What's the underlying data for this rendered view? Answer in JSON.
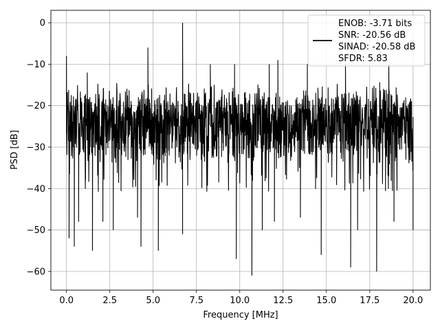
{
  "chart_data": {
    "type": "line",
    "xlabel": "Frequency [MHz]",
    "ylabel": "PSD [dB]",
    "xlim": [
      -0.9,
      21.0
    ],
    "ylim": [
      -64.5,
      3.0
    ],
    "grid": true,
    "x_ticks": [
      0.0,
      2.5,
      5.0,
      7.5,
      10.0,
      12.5,
      15.0,
      17.5,
      20.0
    ],
    "x_tick_labels": [
      "0.0",
      "2.5",
      "5.0",
      "7.5",
      "10.0",
      "12.5",
      "15.0",
      "17.5",
      "20.0"
    ],
    "y_ticks": [
      0,
      -10,
      -20,
      -30,
      -40,
      -50,
      -60
    ],
    "y_tick_labels": [
      "0",
      "−10",
      "−20",
      "−30",
      "−40",
      "−50",
      "−60"
    ],
    "legend": {
      "placement": "top-right",
      "entries": [
        "ENOB: -3.71 bits",
        "SNR: -20.56 dB",
        "SINAD: -20.58 dB",
        "SFDR: 5.83"
      ]
    },
    "series": [
      {
        "color": "#000000",
        "noise_floor_db": -24,
        "noise_top_db": -14,
        "noise_bottom_db": -35,
        "dips": [
          {
            "x": 0.15,
            "y": -52
          },
          {
            "x": 0.45,
            "y": -45
          },
          {
            "x": 0.45,
            "y": -54
          },
          {
            "x": 0.7,
            "y": -48
          },
          {
            "x": 1.1,
            "y": -38
          },
          {
            "x": 1.5,
            "y": -55
          },
          {
            "x": 2.1,
            "y": -48
          },
          {
            "x": 2.7,
            "y": -50
          },
          {
            "x": 4.1,
            "y": -47
          },
          {
            "x": 4.3,
            "y": -54
          },
          {
            "x": 5.3,
            "y": -55
          },
          {
            "x": 6.7,
            "y": -51
          },
          {
            "x": 9.8,
            "y": -57
          },
          {
            "x": 10.7,
            "y": -61
          },
          {
            "x": 11.3,
            "y": -50
          },
          {
            "x": 12.0,
            "y": -48
          },
          {
            "x": 13.5,
            "y": -47
          },
          {
            "x": 14.7,
            "y": -56
          },
          {
            "x": 16.4,
            "y": -59
          },
          {
            "x": 16.8,
            "y": -50
          },
          {
            "x": 17.9,
            "y": -60
          },
          {
            "x": 18.9,
            "y": -48
          },
          {
            "x": 20.0,
            "y": -50
          }
        ],
        "spikes": [
          {
            "x": 0.0,
            "y": -8
          },
          {
            "x": 1.2,
            "y": -12
          },
          {
            "x": 4.7,
            "y": -6
          },
          {
            "x": 6.7,
            "y": 0
          },
          {
            "x": 8.3,
            "y": -10
          },
          {
            "x": 9.7,
            "y": -10
          },
          {
            "x": 11.7,
            "y": -10
          },
          {
            "x": 12.2,
            "y": -9
          },
          {
            "x": 13.9,
            "y": -10
          },
          {
            "x": 16.1,
            "y": -10
          },
          {
            "x": 18.6,
            "y": -10
          }
        ]
      }
    ]
  }
}
